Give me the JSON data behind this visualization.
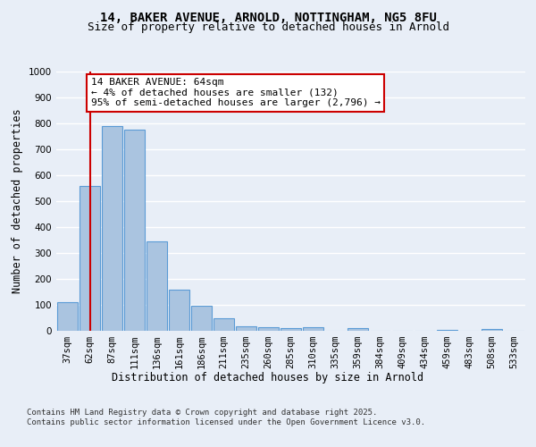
{
  "title_line1": "14, BAKER AVENUE, ARNOLD, NOTTINGHAM, NG5 8FU",
  "title_line2": "Size of property relative to detached houses in Arnold",
  "xlabel": "Distribution of detached houses by size in Arnold",
  "ylabel": "Number of detached properties",
  "categories": [
    "37sqm",
    "62sqm",
    "87sqm",
    "111sqm",
    "136sqm",
    "161sqm",
    "186sqm",
    "211sqm",
    "235sqm",
    "260sqm",
    "285sqm",
    "310sqm",
    "335sqm",
    "359sqm",
    "384sqm",
    "409sqm",
    "434sqm",
    "459sqm",
    "483sqm",
    "508sqm",
    "533sqm"
  ],
  "values": [
    110,
    560,
    790,
    775,
    345,
    160,
    95,
    50,
    17,
    15,
    12,
    15,
    0,
    12,
    0,
    0,
    0,
    5,
    0,
    7,
    0
  ],
  "bar_color": "#aac4e0",
  "bar_edge_color": "#5b9bd5",
  "background_color": "#e8eef7",
  "grid_color": "#ffffff",
  "annotation_text": "14 BAKER AVENUE: 64sqm\n← 4% of detached houses are smaller (132)\n95% of semi-detached houses are larger (2,796) →",
  "annotation_box_color": "#ffffff",
  "annotation_box_edge_color": "#cc0000",
  "redline_x": 1,
  "ylim": [
    0,
    1000
  ],
  "yticks": [
    0,
    100,
    200,
    300,
    400,
    500,
    600,
    700,
    800,
    900,
    1000
  ],
  "footnote": "Contains HM Land Registry data © Crown copyright and database right 2025.\nContains public sector information licensed under the Open Government Licence v3.0.",
  "title_fontsize": 10,
  "subtitle_fontsize": 9,
  "axis_label_fontsize": 8.5,
  "tick_fontsize": 7.5,
  "annotation_fontsize": 8,
  "footnote_fontsize": 6.5
}
